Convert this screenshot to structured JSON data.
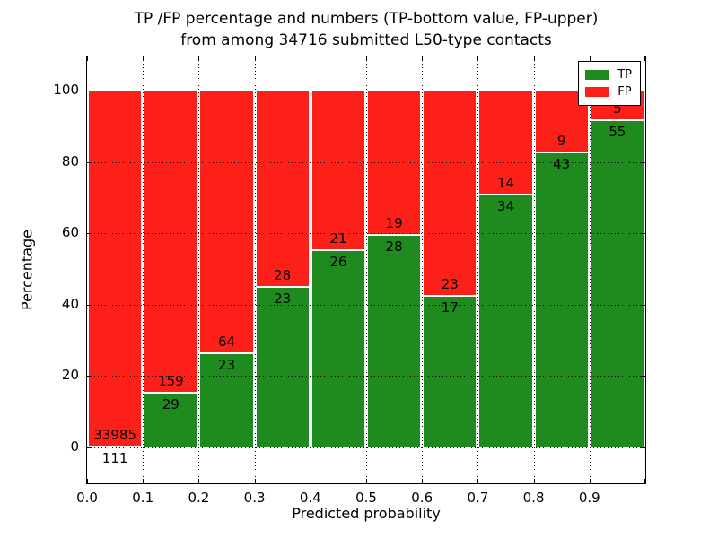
{
  "title": {
    "line1": "TP /FP percentage and numbers (TP-bottom value, FP-upper)",
    "line2": "from among 34716 submitted L50-type contacts"
  },
  "axes": {
    "xlabel": "Predicted probability",
    "ylabel": "Percentage",
    "x_tick_labels": [
      "0.0",
      "0.1",
      "0.2",
      "0.3",
      "0.4",
      "0.5",
      "0.6",
      "0.7",
      "0.8",
      "0.9"
    ],
    "y_tick_labels": [
      "0",
      "20",
      "40",
      "60",
      "80",
      "100"
    ],
    "y_tick_values": [
      0,
      20,
      40,
      60,
      80,
      100
    ]
  },
  "legend": {
    "position": "upper right",
    "items": [
      {
        "label": "TP",
        "color": "#1f8b1f"
      },
      {
        "label": "FP",
        "color": "#fd2018"
      }
    ]
  },
  "chart_data": {
    "type": "bar",
    "stacked": true,
    "normalized": "each bin stacked to 100%",
    "title": "TP /FP percentage and numbers (TP-bottom value, FP-upper) from among 34716 submitted L50-type contacts",
    "xlabel": "Predicted probability",
    "ylabel": "Percentage",
    "total_contacts": 34716,
    "bin_edges": [
      0.0,
      0.1,
      0.2,
      0.3,
      0.4,
      0.5,
      0.6,
      0.7,
      0.8,
      0.9,
      1.0
    ],
    "categories": [
      "0.0-0.1",
      "0.1-0.2",
      "0.2-0.3",
      "0.3-0.4",
      "0.4-0.5",
      "0.5-0.6",
      "0.6-0.7",
      "0.7-0.8",
      "0.8-0.9",
      "0.9-1.0"
    ],
    "series": [
      {
        "name": "TP",
        "color": "#1f8b1f",
        "values": [
          111,
          29,
          23,
          23,
          26,
          28,
          17,
          34,
          43,
          55
        ]
      },
      {
        "name": "FP",
        "color": "#fd2018",
        "values": [
          33985,
          159,
          64,
          28,
          21,
          19,
          23,
          14,
          9,
          5
        ]
      }
    ],
    "tp_percent_est": [
      0.33,
      15.43,
      26.44,
      45.1,
      55.32,
      59.57,
      42.5,
      70.83,
      82.69,
      91.67
    ],
    "ylim": [
      -11,
      110
    ],
    "xlim": [
      0.0,
      1.0
    ],
    "grid": true,
    "grid_style": "dotted",
    "legend_position": "upper right"
  }
}
